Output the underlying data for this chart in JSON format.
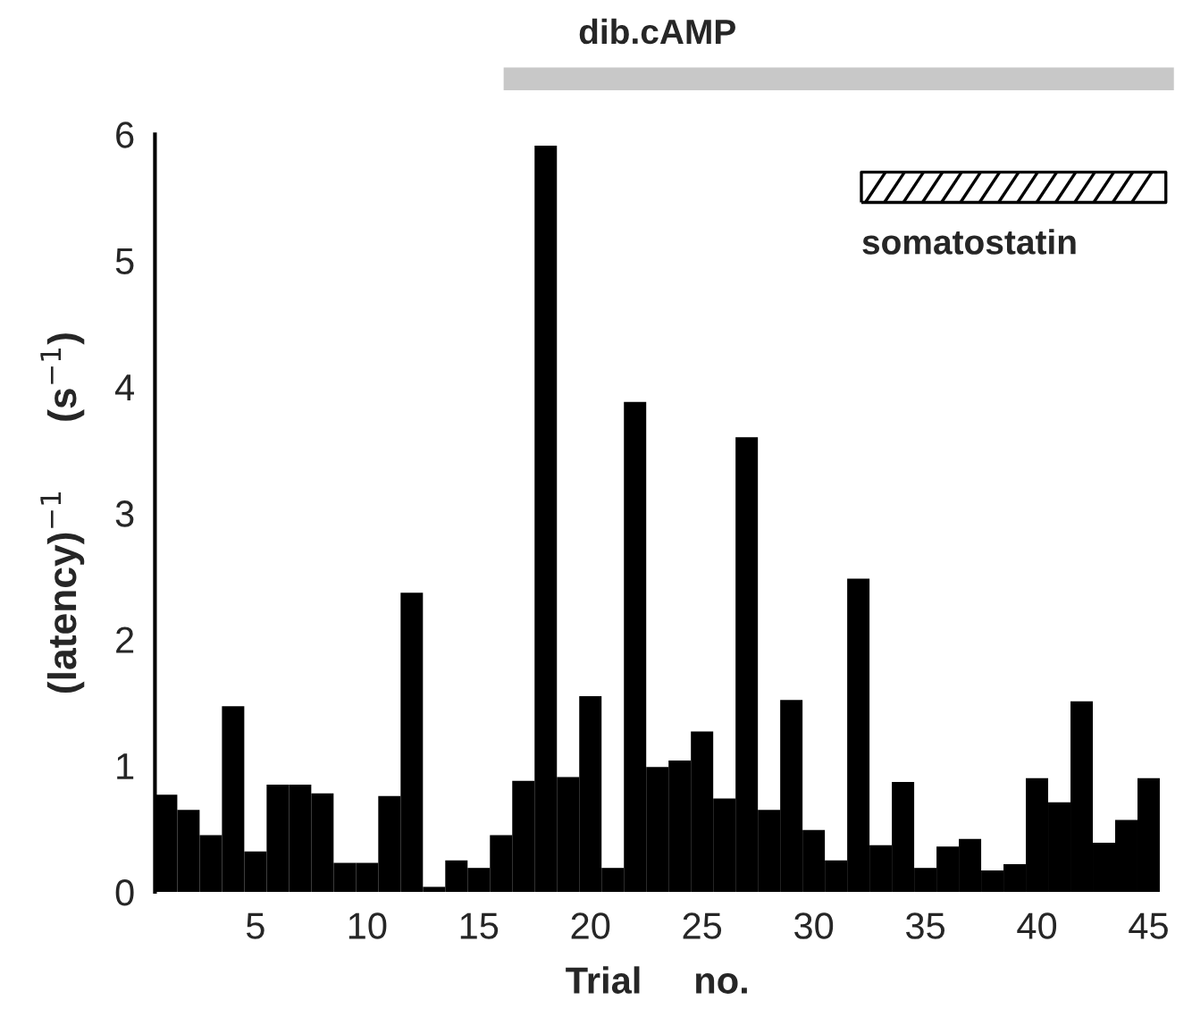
{
  "chart_data": {
    "type": "bar",
    "xlabel": "Trial     no.",
    "ylabel": "(latency)$^{−1}$      (s$^{−1}$)",
    "x": [
      1,
      2,
      3,
      4,
      5,
      6,
      7,
      8,
      9,
      10,
      11,
      12,
      13,
      14,
      15,
      16,
      17,
      18,
      19,
      20,
      21,
      22,
      23,
      24,
      25,
      26,
      27,
      28,
      29,
      30,
      31,
      32,
      33,
      34,
      35,
      36,
      37,
      38,
      39,
      40,
      41,
      42,
      43,
      44,
      45
    ],
    "values": [
      0.77,
      0.65,
      0.45,
      1.47,
      0.32,
      0.85,
      0.85,
      0.78,
      0.23,
      0.23,
      0.76,
      2.37,
      0.04,
      0.25,
      0.19,
      0.45,
      0.88,
      5.91,
      0.91,
      1.55,
      0.19,
      3.88,
      0.99,
      1.04,
      1.27,
      0.74,
      3.6,
      0.65,
      1.52,
      0.49,
      0.25,
      2.48,
      0.37,
      0.87,
      0.19,
      0.36,
      0.42,
      0.17,
      0.22,
      0.9,
      0.71,
      1.51,
      0.39,
      0.57,
      0.9
    ],
    "color": "#000000",
    "xlim": [
      0.5,
      45.5
    ],
    "ylim": [
      0,
      6
    ],
    "xticks": [
      5,
      10,
      15,
      20,
      25,
      30,
      35,
      40,
      45
    ],
    "yticks": [
      0,
      1,
      2,
      3,
      4,
      5,
      6
    ],
    "annotations": [
      "dib.cAMP",
      "somatostatin"
    ],
    "grid": false,
    "legend": false
  }
}
